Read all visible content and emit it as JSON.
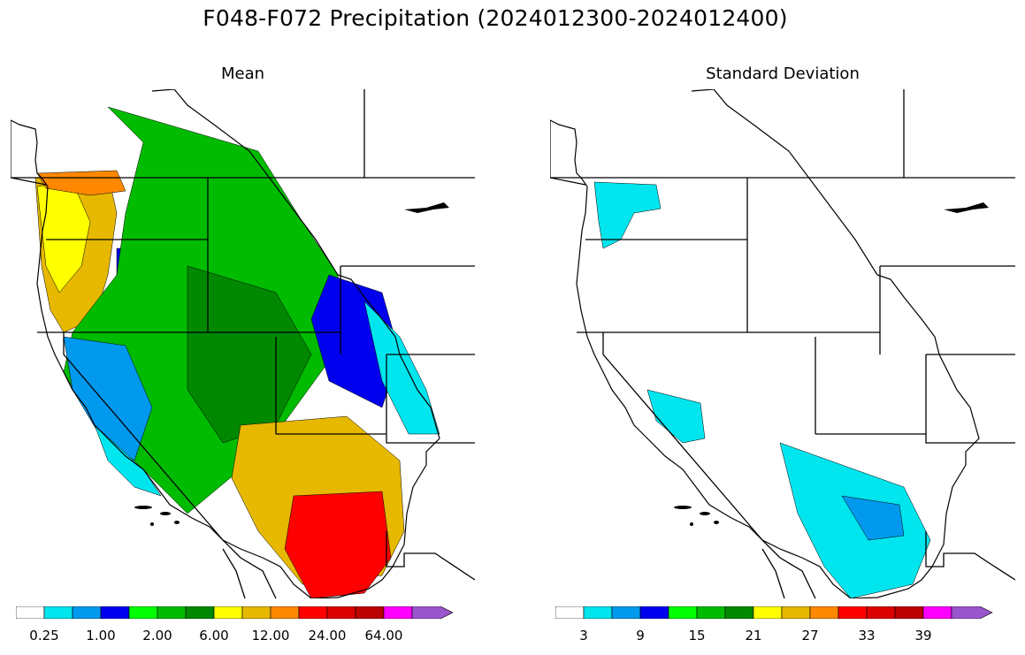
{
  "figure": {
    "title": "F048-F072 Precipitation (2024012300-2024012400)"
  },
  "panels": [
    {
      "title": "Mean",
      "colorbar": {
        "colors": [
          "#ffffff",
          "#00e5ee",
          "#0099ee",
          "#0000ee",
          "#00ff00",
          "#00bb00",
          "#008800",
          "#ffff00",
          "#e6b800",
          "#ff8800",
          "#ff0000",
          "#dd0000",
          "#bb0000",
          "#ff00ff",
          "#9955cc"
        ],
        "extend": "max",
        "tick_labels": [
          "0.25",
          "1.00",
          "2.00",
          "6.00",
          "12.00",
          "24.00",
          "64.00"
        ]
      }
    },
    {
      "title": "Standard Deviation",
      "colorbar": {
        "colors": [
          "#ffffff",
          "#00e5ee",
          "#0099ee",
          "#0000ee",
          "#00ff00",
          "#00bb00",
          "#008800",
          "#ffff00",
          "#e6b800",
          "#ff8800",
          "#ff0000",
          "#dd0000",
          "#bb0000",
          "#ff00ff",
          "#9955cc"
        ],
        "extend": "max",
        "tick_labels": [
          "3",
          "9",
          "15",
          "21",
          "27",
          "33",
          "39"
        ]
      }
    }
  ],
  "map_regions": {
    "mean": [
      {
        "id": "nw-coast",
        "color": "#e6b800"
      },
      {
        "id": "wa-coast",
        "color": "#ffff00"
      },
      {
        "id": "puget",
        "color": "#ff8800"
      },
      {
        "id": "idaho",
        "color": "#0000ee"
      },
      {
        "id": "interior",
        "color": "#00bb00"
      },
      {
        "id": "great-basin",
        "color": "#008800"
      },
      {
        "id": "sierra",
        "color": "#0099ee"
      },
      {
        "id": "socal",
        "color": "#00e5ee"
      },
      {
        "id": "arizona",
        "color": "#e6b800"
      },
      {
        "id": "az-south",
        "color": "#ff0000"
      },
      {
        "id": "colorado",
        "color": "#0000ee"
      },
      {
        "id": "east-edge",
        "color": "#00e5ee"
      }
    ],
    "stddev": [
      {
        "id": "wa-pockets",
        "color": "#00e5ee"
      },
      {
        "id": "ca-central",
        "color": "#00e5ee"
      },
      {
        "id": "az-main",
        "color": "#00e5ee"
      },
      {
        "id": "az-core",
        "color": "#0099ee"
      }
    ]
  }
}
